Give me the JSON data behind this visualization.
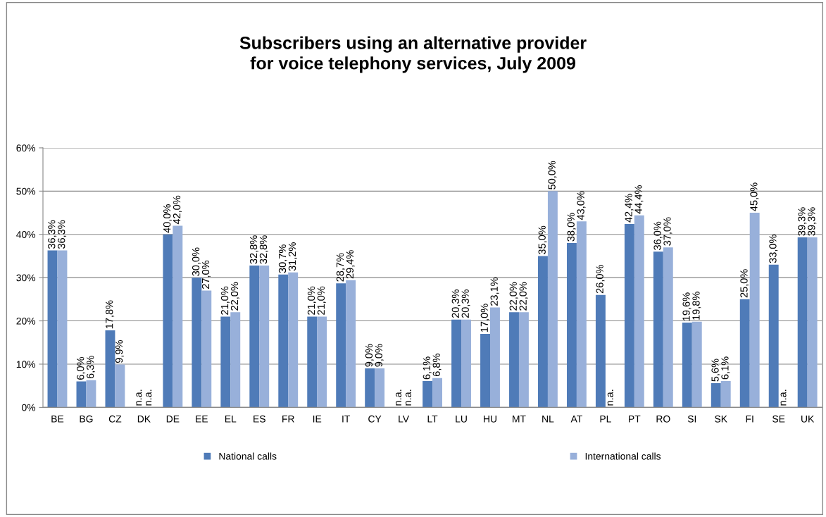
{
  "chart_data": {
    "type": "bar",
    "title": "Subscribers using an alternative provider\nfor voice telephony services, July 2009",
    "categories": [
      "BE",
      "BG",
      "CZ",
      "DK",
      "DE",
      "EE",
      "EL",
      "ES",
      "FR",
      "IE",
      "IT",
      "CY",
      "LV",
      "LT",
      "LU",
      "HU",
      "MT",
      "NL",
      "AT",
      "PL",
      "PT",
      "RO",
      "SI",
      "SK",
      "FI",
      "SE",
      "UK"
    ],
    "series": [
      {
        "name": "National calls",
        "color": "#4f7bb8",
        "values": [
          36.3,
          6.0,
          17.8,
          null,
          40.0,
          30.0,
          21.0,
          32.8,
          30.7,
          21.0,
          28.7,
          9.0,
          null,
          6.1,
          20.3,
          17.0,
          22.0,
          35.0,
          38.0,
          26.0,
          42.4,
          36.0,
          19.6,
          5.6,
          25.0,
          33.0,
          39.3
        ],
        "value_labels": [
          "36,3%",
          "6,0%",
          "17,8%",
          "n.a.",
          "40,0%",
          "30,0%",
          "21,0%",
          "32,8%",
          "30,7%",
          "21,0%",
          "28,7%",
          "9,0%",
          "n.a.",
          "6,1%",
          "20,3%",
          "17,0%",
          "22,0%",
          "35,0%",
          "38,0%",
          "26,0%",
          "42,4%",
          "36,0%",
          "19,6%",
          "5,6%",
          "25,0%",
          "33,0%",
          "39,3%"
        ]
      },
      {
        "name": "International calls",
        "color": "#98b0da",
        "values": [
          36.3,
          6.3,
          9.9,
          null,
          42.0,
          27.0,
          22.0,
          32.8,
          31.2,
          21.0,
          29.4,
          9.0,
          null,
          6.8,
          20.3,
          23.1,
          22.0,
          50.0,
          43.0,
          null,
          44.4,
          37.0,
          19.8,
          6.1,
          45.0,
          null,
          39.3
        ],
        "value_labels": [
          "36,3%",
          "6,3%",
          "9,9%",
          "n.a.",
          "42,0%",
          "27,0%",
          "22,0%",
          "32,8%",
          "31,2%",
          "21,0%",
          "29,4%",
          "9,0%",
          "n.a.",
          "6,8%",
          "20,3%",
          "23,1%",
          "22,0%",
          "50,0%",
          "43,0%",
          "n.a.",
          "44,4%",
          "37,0%",
          "19,8%",
          "6,1%",
          "45,0%",
          "n.a.",
          "39,3%"
        ]
      }
    ],
    "ylim": [
      0,
      60
    ],
    "yticks": [
      {
        "value": 0,
        "label": "0%"
      },
      {
        "value": 10,
        "label": "10%"
      },
      {
        "value": 20,
        "label": "20%"
      },
      {
        "value": 30,
        "label": "30%"
      },
      {
        "value": 40,
        "label": "40%"
      },
      {
        "value": 50,
        "label": "50%"
      },
      {
        "value": 60,
        "label": "60%"
      }
    ],
    "grid": "y",
    "legend": "bottom"
  }
}
